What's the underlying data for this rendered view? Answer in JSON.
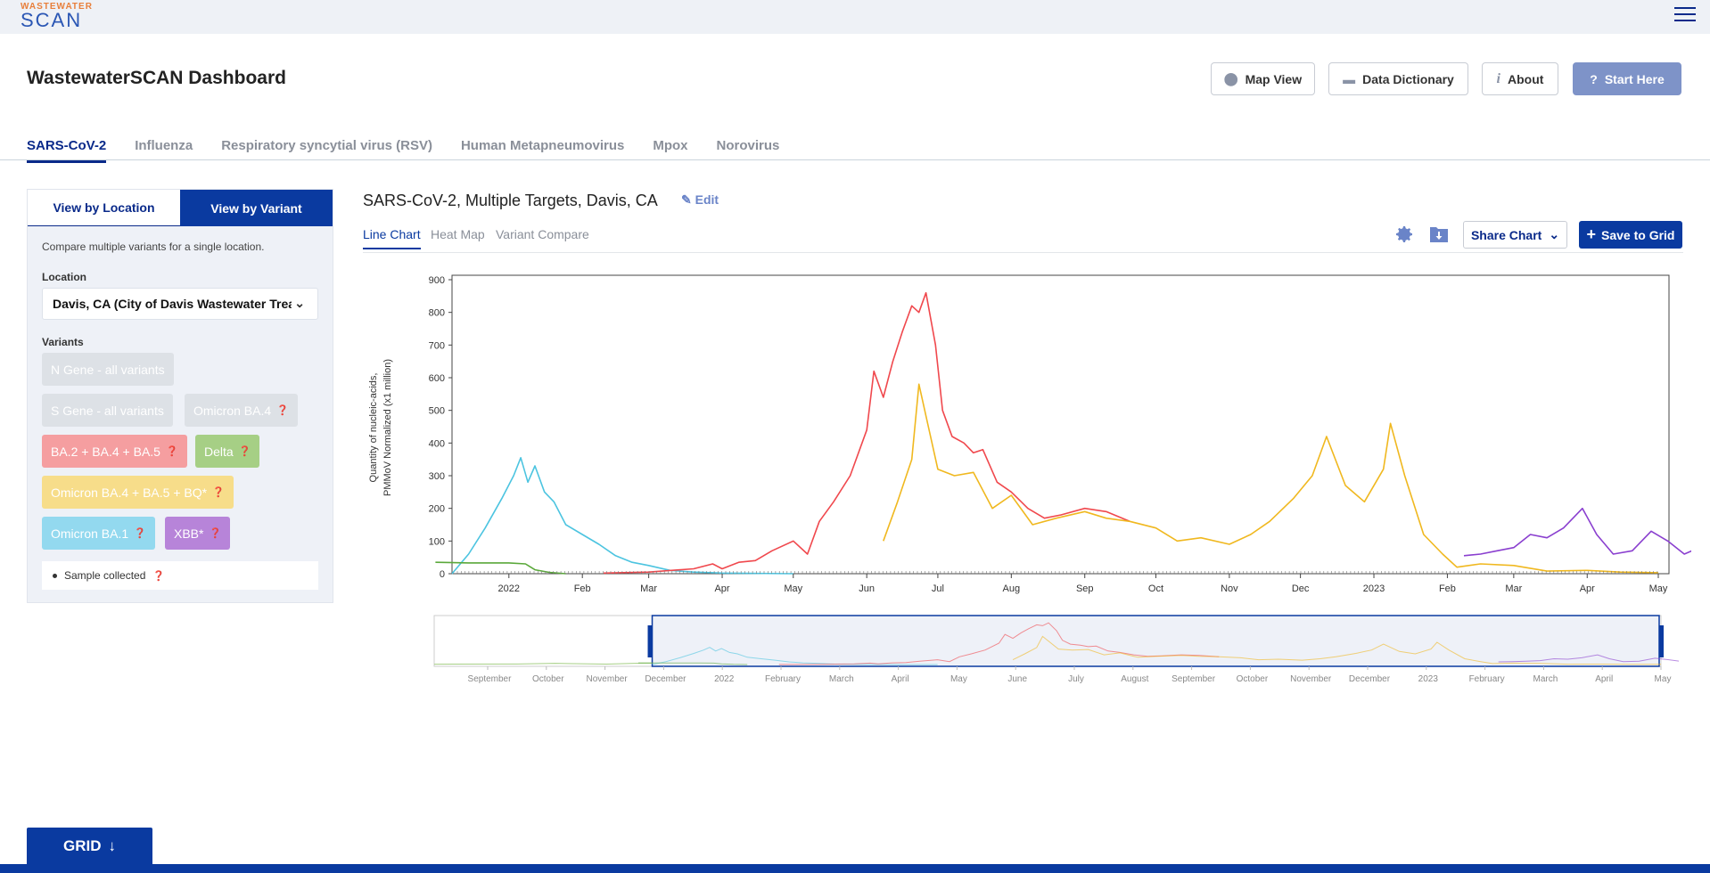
{
  "logo": {
    "top": "WASTEWATER",
    "bottom": "SCAN"
  },
  "header": {
    "title": "WastewaterSCAN Dashboard",
    "buttons": {
      "map": "Map View",
      "dictionary": "Data Dictionary",
      "about": "About",
      "start": "Start Here"
    }
  },
  "tabs": [
    {
      "label": "SARS-CoV-2",
      "active": true
    },
    {
      "label": "Influenza"
    },
    {
      "label": "Respiratory syncytial virus (RSV)"
    },
    {
      "label": "Human Metapneumovirus"
    },
    {
      "label": "Mpox"
    },
    {
      "label": "Norovirus"
    }
  ],
  "sidebar": {
    "toggle_location": "View by Location",
    "toggle_variant": "View by Variant",
    "description": "Compare multiple variants for a single location.",
    "location_label": "Location",
    "location_value": "Davis, CA (City of Davis Wastewater Treatment Plant)",
    "variants_label": "Variants",
    "variants": [
      {
        "label": "N Gene - all variants",
        "state": "disabled"
      },
      {
        "label": "S Gene - all variants",
        "state": "disabled"
      },
      {
        "label": "Omicron BA.4",
        "state": "disabled"
      },
      {
        "label": "BA.2 + BA.4 + BA.5",
        "state": "on",
        "color": "#f59ea0"
      },
      {
        "label": "Delta",
        "state": "on",
        "color": "#a6cf85"
      },
      {
        "label": "Omicron BA.4 + BA.5 + BQ*",
        "state": "on",
        "color": "#f7dd8a"
      },
      {
        "label": "Omicron BA.1",
        "state": "on",
        "color": "#93d9ef"
      },
      {
        "label": "XBB*",
        "state": "on",
        "color": "#b784d9"
      }
    ],
    "sample_legend": "Sample collected"
  },
  "chart_header": {
    "title": "SARS-CoV-2, Multiple Targets, Davis, CA",
    "edit": "Edit",
    "tabs": [
      "Line Chart",
      "Heat Map",
      "Variant Compare"
    ],
    "share": "Share Chart",
    "save": "Save to Grid",
    "icons": [
      "gear-icon",
      "download-icon"
    ]
  },
  "bottom": {
    "grid_label": "GRID"
  },
  "chart_data": {
    "type": "line",
    "ylabel": "Quantity of nucleic-acids, PMMoV Normalized (x1 million)",
    "ylim": [
      0,
      900
    ],
    "y_ticks": [
      0,
      100,
      200,
      300,
      400,
      500,
      600,
      700,
      800,
      900
    ],
    "x_range": [
      "2021-12-01",
      "2023-05-01"
    ],
    "x_ticks": [
      {
        "label": "2022",
        "date": "2022-01-01"
      },
      {
        "label": "Feb",
        "date": "2022-02-01"
      },
      {
        "label": "Mar",
        "date": "2022-03-01"
      },
      {
        "label": "Apr",
        "date": "2022-04-01"
      },
      {
        "label": "May",
        "date": "2022-05-01"
      },
      {
        "label": "Jun",
        "date": "2022-06-01"
      },
      {
        "label": "Jul",
        "date": "2022-07-01"
      },
      {
        "label": "Aug",
        "date": "2022-08-01"
      },
      {
        "label": "Sep",
        "date": "2022-09-01"
      },
      {
        "label": "Oct",
        "date": "2022-10-01"
      },
      {
        "label": "Nov",
        "date": "2022-11-01"
      },
      {
        "label": "Dec",
        "date": "2022-12-01"
      },
      {
        "label": "2023",
        "date": "2023-01-01"
      },
      {
        "label": "Feb",
        "date": "2023-02-01"
      },
      {
        "label": "Mar",
        "date": "2023-03-01"
      },
      {
        "label": "Apr",
        "date": "2023-04-01"
      },
      {
        "label": "May",
        "date": "2023-05-01"
      }
    ],
    "series": [
      {
        "color": "#4cc4e0",
        "points": [
          [
            "2021-12-08",
            0
          ],
          [
            "2021-12-15",
            60
          ],
          [
            "2021-12-22",
            140
          ],
          [
            "2021-12-29",
            230
          ],
          [
            "2022-01-03",
            300
          ],
          [
            "2022-01-06",
            355
          ],
          [
            "2022-01-09",
            280
          ],
          [
            "2022-01-12",
            330
          ],
          [
            "2022-01-16",
            250
          ],
          [
            "2022-01-20",
            220
          ],
          [
            "2022-01-25",
            150
          ],
          [
            "2022-02-01",
            120
          ],
          [
            "2022-02-08",
            90
          ],
          [
            "2022-02-15",
            55
          ],
          [
            "2022-02-22",
            35
          ],
          [
            "2022-03-01",
            25
          ],
          [
            "2022-03-10",
            10
          ],
          [
            "2022-03-20",
            5
          ],
          [
            "2022-04-01",
            2
          ],
          [
            "2022-05-01",
            0
          ]
        ]
      },
      {
        "color": "#5aa83a",
        "points": [
          [
            "2021-12-01",
            35
          ],
          [
            "2021-12-15",
            33
          ],
          [
            "2022-01-01",
            33
          ],
          [
            "2022-01-08",
            30
          ],
          [
            "2022-01-12",
            12
          ],
          [
            "2022-01-18",
            4
          ],
          [
            "2022-01-25",
            0
          ]
        ]
      },
      {
        "color": "#f0484d",
        "points": [
          [
            "2022-02-10",
            2
          ],
          [
            "2022-03-01",
            5
          ],
          [
            "2022-03-20",
            15
          ],
          [
            "2022-03-28",
            30
          ],
          [
            "2022-04-01",
            15
          ],
          [
            "2022-04-08",
            35
          ],
          [
            "2022-04-15",
            40
          ],
          [
            "2022-04-22",
            70
          ],
          [
            "2022-05-01",
            100
          ],
          [
            "2022-05-07",
            60
          ],
          [
            "2022-05-12",
            160
          ],
          [
            "2022-05-18",
            220
          ],
          [
            "2022-05-25",
            300
          ],
          [
            "2022-06-01",
            440
          ],
          [
            "2022-06-04",
            620
          ],
          [
            "2022-06-08",
            540
          ],
          [
            "2022-06-12",
            650
          ],
          [
            "2022-06-16",
            740
          ],
          [
            "2022-06-20",
            820
          ],
          [
            "2022-06-23",
            800
          ],
          [
            "2022-06-26",
            860
          ],
          [
            "2022-06-30",
            700
          ],
          [
            "2022-07-03",
            500
          ],
          [
            "2022-07-07",
            420
          ],
          [
            "2022-07-12",
            400
          ],
          [
            "2022-07-16",
            370
          ],
          [
            "2022-07-20",
            380
          ],
          [
            "2022-07-26",
            280
          ],
          [
            "2022-08-01",
            250
          ],
          [
            "2022-08-08",
            200
          ],
          [
            "2022-08-15",
            170
          ],
          [
            "2022-08-22",
            180
          ],
          [
            "2022-09-01",
            200
          ],
          [
            "2022-09-10",
            190
          ],
          [
            "2022-09-20",
            160
          ]
        ]
      },
      {
        "color": "#f0b81f",
        "points": [
          [
            "2022-06-08",
            100
          ],
          [
            "2022-06-14",
            220
          ],
          [
            "2022-06-20",
            350
          ],
          [
            "2022-06-23",
            580
          ],
          [
            "2022-06-27",
            450
          ],
          [
            "2022-07-01",
            320
          ],
          [
            "2022-07-08",
            300
          ],
          [
            "2022-07-16",
            310
          ],
          [
            "2022-07-24",
            200
          ],
          [
            "2022-08-01",
            240
          ],
          [
            "2022-08-10",
            150
          ],
          [
            "2022-08-20",
            170
          ],
          [
            "2022-09-01",
            190
          ],
          [
            "2022-09-10",
            170
          ],
          [
            "2022-09-20",
            160
          ],
          [
            "2022-10-01",
            140
          ],
          [
            "2022-10-10",
            100
          ],
          [
            "2022-10-20",
            110
          ],
          [
            "2022-11-01",
            90
          ],
          [
            "2022-11-10",
            120
          ],
          [
            "2022-11-18",
            160
          ],
          [
            "2022-11-28",
            230
          ],
          [
            "2022-12-06",
            300
          ],
          [
            "2022-12-12",
            420
          ],
          [
            "2022-12-20",
            270
          ],
          [
            "2022-12-28",
            220
          ],
          [
            "2023-01-05",
            320
          ],
          [
            "2023-01-08",
            460
          ],
          [
            "2023-01-14",
            300
          ],
          [
            "2023-01-22",
            120
          ],
          [
            "2023-01-30",
            60
          ],
          [
            "2023-02-05",
            20
          ],
          [
            "2023-02-15",
            30
          ],
          [
            "2023-03-01",
            25
          ],
          [
            "2023-03-15",
            8
          ],
          [
            "2023-04-01",
            10
          ],
          [
            "2023-04-15",
            5
          ],
          [
            "2023-05-01",
            3
          ]
        ]
      },
      {
        "color": "#8a3fcf",
        "points": [
          [
            "2023-02-08",
            55
          ],
          [
            "2023-02-15",
            60
          ],
          [
            "2023-02-22",
            70
          ],
          [
            "2023-03-01",
            80
          ],
          [
            "2023-03-08",
            120
          ],
          [
            "2023-03-15",
            110
          ],
          [
            "2023-03-22",
            140
          ],
          [
            "2023-03-30",
            200
          ],
          [
            "2023-04-05",
            120
          ],
          [
            "2023-04-12",
            60
          ],
          [
            "2023-04-20",
            70
          ],
          [
            "2023-04-28",
            130
          ],
          [
            "2023-05-05",
            100
          ],
          [
            "2023-05-12",
            60
          ],
          [
            "2023-05-20",
            85
          ]
        ]
      }
    ]
  },
  "nav_axis": [
    "September",
    "October",
    "November",
    "December",
    "2022",
    "February",
    "March",
    "April",
    "May",
    "June",
    "July",
    "August",
    "September",
    "October",
    "November",
    "December",
    "2023",
    "February",
    "March",
    "April",
    "May"
  ]
}
